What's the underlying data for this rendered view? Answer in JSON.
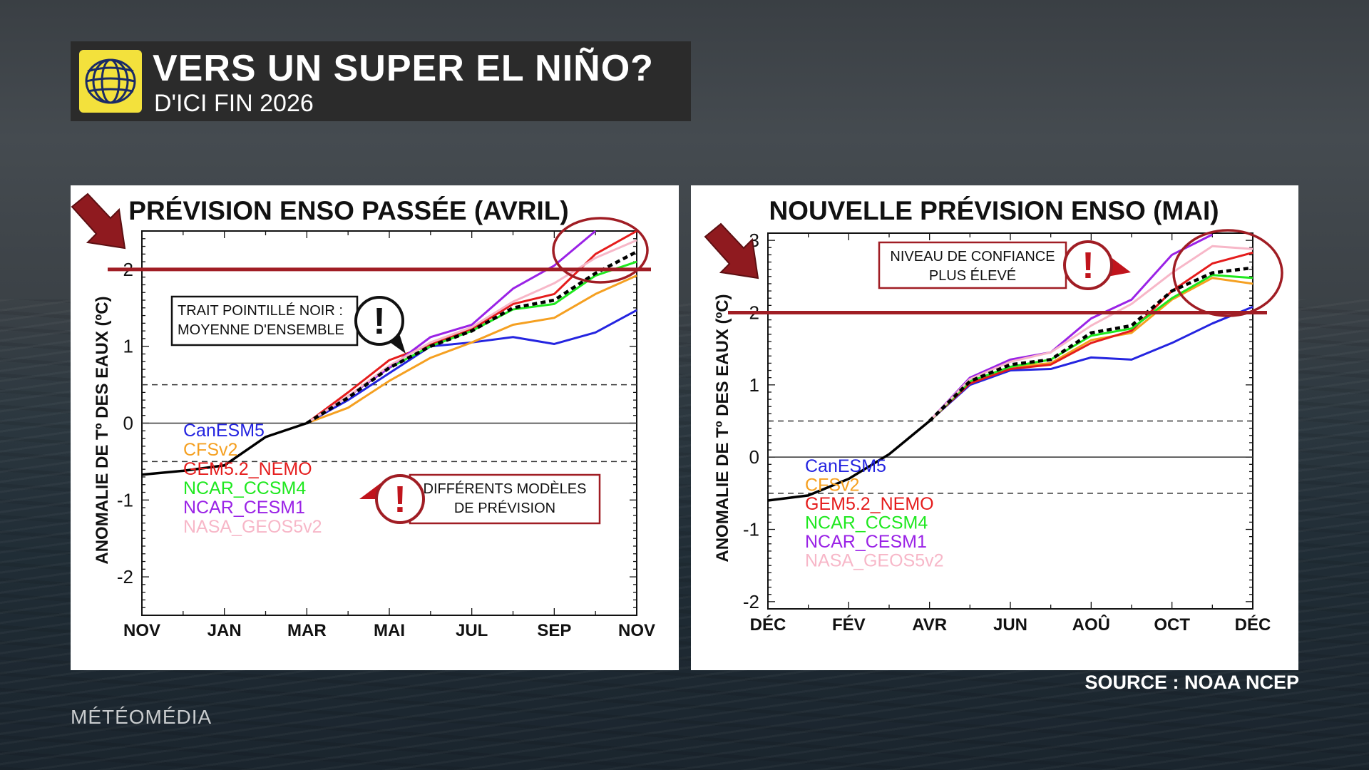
{
  "header": {
    "title": "VERS UN SUPER EL NIÑO?",
    "subtitle": "D'ICI FIN 2026",
    "accent_color": "#f3e13c"
  },
  "source_text": "SOURCE : NOAA NCEP",
  "brand": "MÉTÉOMÉDIA",
  "series_colors": {
    "CanESM5": "#2424e0",
    "CFSv2": "#f5a021",
    "GEM5.2_NEMO": "#e51c1c",
    "NCAR_CCSM4": "#1ee81e",
    "NCAR_CESM1": "#9a22e6",
    "NASA_GEOS5v2": "#f7b7c8",
    "observed": "#000000",
    "ensemble": "#000000",
    "threshold": "#a01d24"
  },
  "chart_data": [
    {
      "type": "line",
      "title": "PRÉVISION ENSO PASSÉE (AVRIL)",
      "ylabel": "ANOMALIE DE Tº DES EAUX (ºC)",
      "xlabel": "",
      "x_ticks": [
        "NOV",
        "JAN",
        "MAR",
        "MAI",
        "JUL",
        "SEP",
        "NOV"
      ],
      "x_range": [
        0,
        12
      ],
      "ylim": [
        -2.5,
        2.5
      ],
      "y_ticks": [
        2,
        1,
        0,
        -1,
        -2
      ],
      "reference_lines": [
        0.5,
        -0.5
      ],
      "threshold_line": 2,
      "legend": [
        "CanESM5",
        "CFSv2",
        "GEM5.2_NEMO",
        "NCAR_CCSM4",
        "NCAR_CESM1",
        "NASA_GEOS5v2"
      ],
      "observed": {
        "x": [
          0,
          1,
          2,
          3,
          4
        ],
        "values": [
          -0.67,
          -0.62,
          -0.55,
          -0.18,
          0.0
        ]
      },
      "series": [
        {
          "name": "CanESM5",
          "x": [
            4,
            5,
            6,
            7,
            8,
            9,
            10,
            11,
            12
          ],
          "values": [
            0.0,
            0.3,
            0.65,
            1.0,
            1.05,
            1.12,
            1.03,
            1.18,
            1.47
          ]
        },
        {
          "name": "CFSv2",
          "x": [
            4,
            5,
            6,
            7,
            8,
            9,
            10,
            11,
            12
          ],
          "values": [
            0.0,
            0.2,
            0.55,
            0.85,
            1.05,
            1.28,
            1.37,
            1.68,
            1.92
          ]
        },
        {
          "name": "GEM5.2_NEMO",
          "x": [
            4,
            5,
            6,
            7,
            8,
            9,
            10,
            11,
            12
          ],
          "values": [
            0.0,
            0.4,
            0.82,
            1.02,
            1.22,
            1.55,
            1.68,
            2.2,
            2.55
          ]
        },
        {
          "name": "NCAR_CCSM4",
          "x": [
            4,
            5,
            6,
            7,
            8,
            9,
            10,
            11,
            12
          ],
          "values": [
            0.0,
            0.35,
            0.72,
            1.0,
            1.2,
            1.48,
            1.55,
            1.92,
            2.1
          ]
        },
        {
          "name": "NCAR_CESM1",
          "x": [
            4,
            5,
            6,
            7,
            8,
            9,
            10,
            11
          ],
          "values": [
            0.0,
            0.35,
            0.72,
            1.12,
            1.28,
            1.75,
            2.05,
            2.55
          ]
        },
        {
          "name": "NASA_GEOS5v2",
          "x": [
            4,
            5,
            6,
            7,
            8,
            9,
            10,
            11,
            12
          ],
          "values": [
            0.0,
            0.35,
            0.75,
            1.05,
            1.25,
            1.58,
            1.82,
            2.15,
            2.38
          ]
        }
      ],
      "ensemble_mean": {
        "name": "MOYENNE D'ENSEMBLE",
        "x": [
          4,
          5,
          6,
          7,
          8,
          9,
          10,
          11,
          12
        ],
        "values": [
          0.0,
          0.33,
          0.72,
          1.0,
          1.2,
          1.5,
          1.6,
          1.95,
          2.23
        ]
      },
      "annotations": {
        "dashed_note_line1": "TRAIT POINTILLÉ NOIR :",
        "dashed_note_line2": "MOYENNE D'ENSEMBLE",
        "models_note_line1": "DIFFÉRENTS MODÈLES",
        "models_note_line2": "DE PRÉVISION",
        "alert_glyph": "!"
      }
    },
    {
      "type": "line",
      "title": "NOUVELLE PRÉVISION ENSO (MAI)",
      "ylabel": "ANOMALIE DE Tº DES EAUX (ºC)",
      "xlabel": "",
      "x_ticks": [
        "DÉC",
        "FÉV",
        "AVR",
        "JUN",
        "AOÛ",
        "OCT",
        "DÉC"
      ],
      "x_range": [
        0,
        12
      ],
      "ylim": [
        -2.1,
        3.1
      ],
      "y_ticks": [
        3,
        2,
        1,
        0,
        -1,
        -2
      ],
      "reference_lines": [
        0.5,
        -0.5
      ],
      "threshold_line": 2,
      "legend": [
        "CanESM5",
        "CFSv2",
        "GEM5.2_NEMO",
        "NCAR_CCSM4",
        "NCAR_CESM1",
        "NASA_GEOS5v2"
      ],
      "observed": {
        "x": [
          0,
          1,
          2,
          3,
          4
        ],
        "values": [
          -0.6,
          -0.53,
          -0.3,
          0.04,
          0.5
        ]
      },
      "series": [
        {
          "name": "CanESM5",
          "x": [
            4,
            5,
            6,
            7,
            8,
            9,
            10,
            11,
            12
          ],
          "values": [
            0.5,
            1.0,
            1.2,
            1.22,
            1.38,
            1.35,
            1.58,
            1.85,
            2.08
          ]
        },
        {
          "name": "CFSv2",
          "x": [
            4,
            5,
            6,
            7,
            8,
            9,
            10,
            11,
            12
          ],
          "values": [
            0.5,
            1.02,
            1.25,
            1.3,
            1.62,
            1.72,
            2.18,
            2.48,
            2.4
          ]
        },
        {
          "name": "GEM5.2_NEMO",
          "x": [
            4,
            5,
            6,
            7,
            8,
            9,
            10,
            11,
            12
          ],
          "values": [
            0.5,
            1.02,
            1.22,
            1.28,
            1.58,
            1.75,
            2.3,
            2.68,
            2.83
          ]
        },
        {
          "name": "NCAR_CCSM4",
          "x": [
            4,
            5,
            6,
            7,
            8,
            9,
            10,
            11,
            12
          ],
          "values": [
            0.5,
            1.05,
            1.25,
            1.35,
            1.68,
            1.78,
            2.2,
            2.52,
            2.48
          ]
        },
        {
          "name": "NCAR_CESM1",
          "x": [
            4,
            5,
            6,
            7,
            8,
            9,
            10,
            11
          ],
          "values": [
            0.5,
            1.1,
            1.35,
            1.45,
            1.92,
            2.18,
            2.8,
            3.08
          ]
        },
        {
          "name": "NASA_GEOS5v2",
          "x": [
            4,
            5,
            6,
            7,
            8,
            9,
            10,
            11,
            12
          ],
          "values": [
            0.5,
            1.08,
            1.32,
            1.45,
            1.82,
            2.12,
            2.55,
            2.92,
            2.88
          ]
        }
      ],
      "ensemble_mean": {
        "name": "MOYENNE D'ENSEMBLE",
        "x": [
          4,
          5,
          6,
          7,
          8,
          9,
          10,
          11,
          12
        ],
        "values": [
          0.5,
          1.05,
          1.28,
          1.35,
          1.72,
          1.82,
          2.3,
          2.55,
          2.62
        ]
      },
      "annotations": {
        "confidence_note_line1": "NIVEAU DE CONFIANCE",
        "confidence_note_line2": "PLUS ÉLEVÉ",
        "alert_glyph": "!"
      }
    }
  ]
}
